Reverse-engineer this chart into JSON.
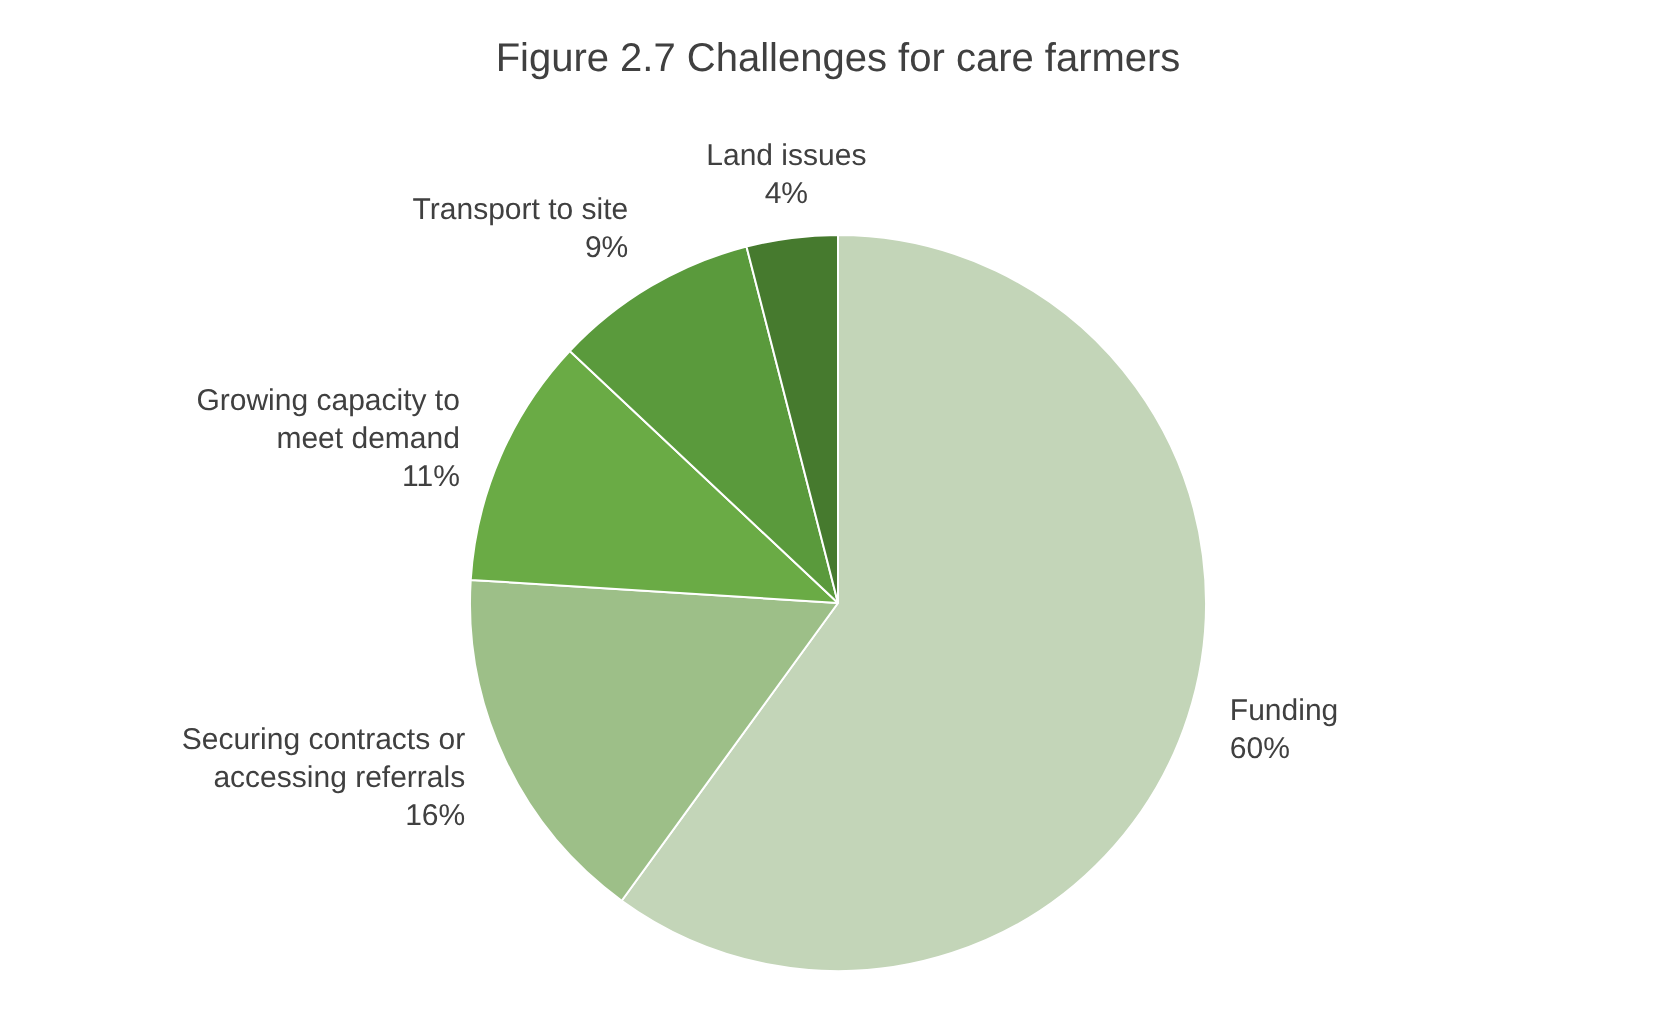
{
  "chart_data": {
    "type": "pie",
    "title": "Figure 2.7 Challenges for care farmers",
    "categories": [
      "Funding",
      "Securing contracts or accessing referrals",
      "Growing capacity to meet demand",
      "Transport to site",
      "Land issues"
    ],
    "values": [
      60,
      16,
      11,
      9,
      4
    ],
    "colors": [
      "#c3d5b8",
      "#9dbf88",
      "#6aab45",
      "#5a9a3c",
      "#467a2e"
    ],
    "value_labels": [
      "60%",
      "16%",
      "11%",
      "9%",
      "4%"
    ],
    "legend": false
  }
}
